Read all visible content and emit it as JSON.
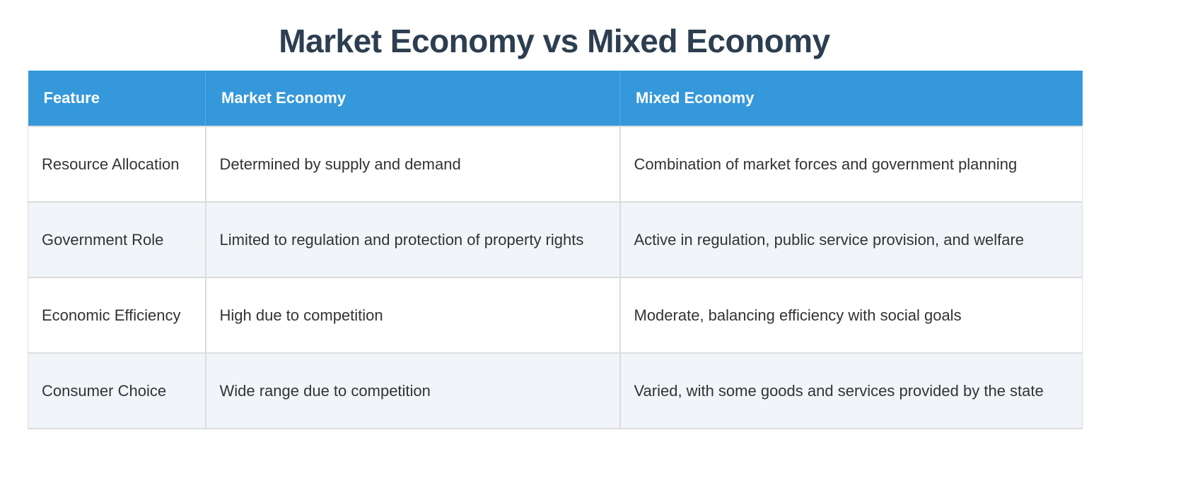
{
  "title": "Market Economy vs Mixed Economy",
  "colors": {
    "title": "#2c3e50",
    "header_bg": "#3498db",
    "header_text": "#ffffff",
    "row_alt_bg": "#f1f4f9",
    "border": "#dddddd",
    "cell_text": "#333333"
  },
  "table": {
    "headers": [
      "Feature",
      "Market Economy",
      "Mixed Economy"
    ],
    "rows": [
      [
        "Resource Allocation",
        "Determined by supply and demand",
        "Combination of market forces and government planning"
      ],
      [
        "Government Role",
        "Limited to regulation and protection of property rights",
        "Active in regulation, public service provision, and welfare"
      ],
      [
        "Economic Efficiency",
        "High due to competition",
        "Moderate, balancing efficiency with social goals"
      ],
      [
        "Consumer Choice",
        "Wide range due to competition",
        "Varied, with some goods and services provided by the state"
      ]
    ]
  }
}
